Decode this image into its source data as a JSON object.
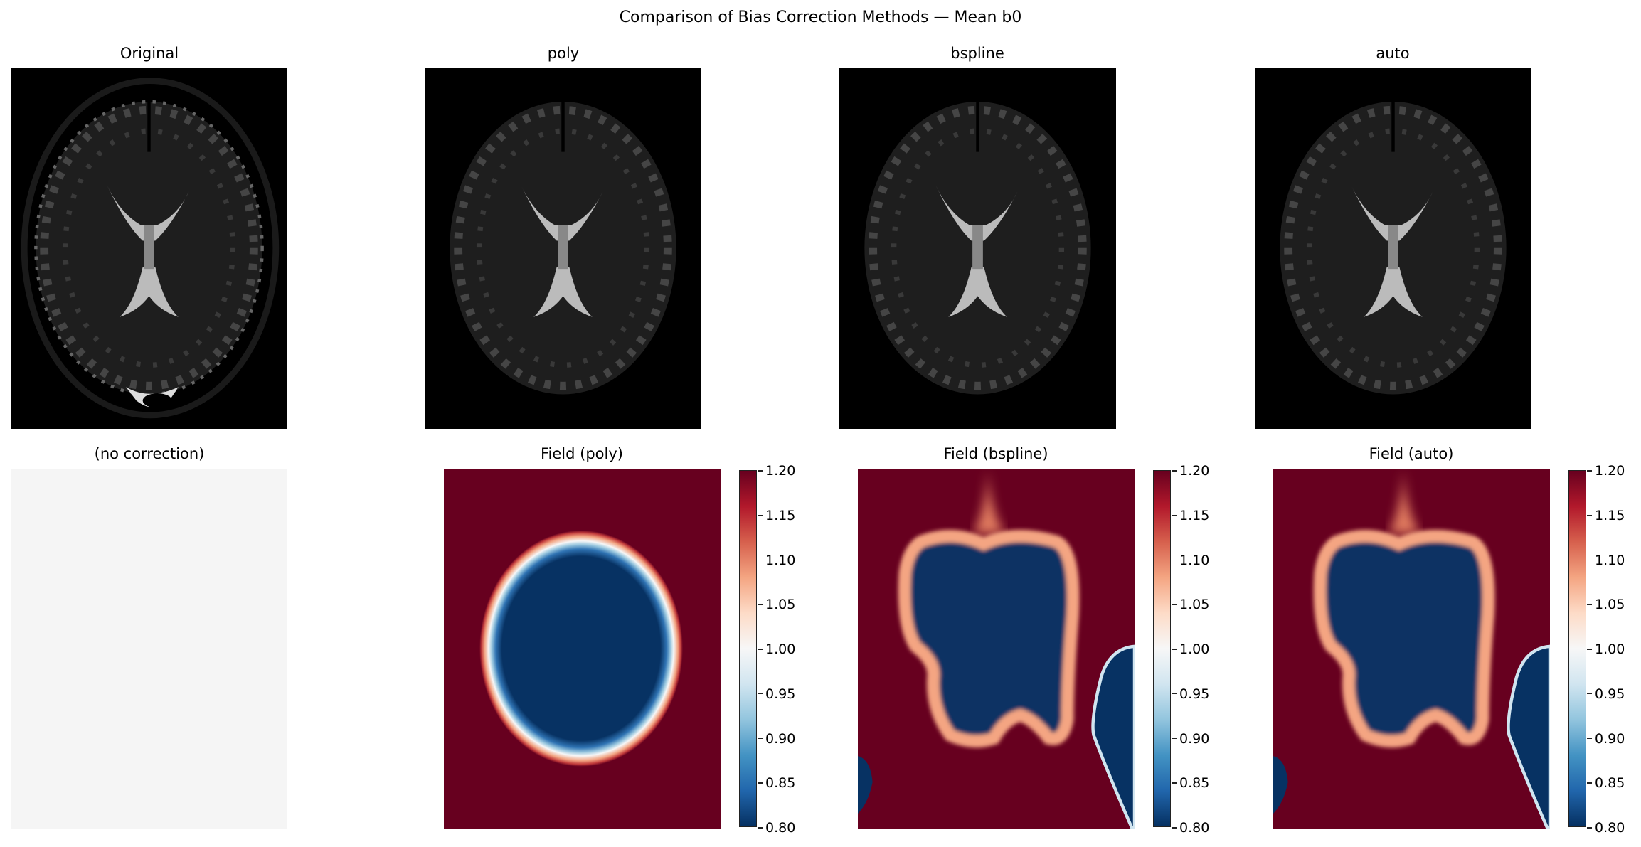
{
  "chart_data": {
    "type": "heatmap",
    "title": "Comparison of Bias Correction Methods — Mean b0",
    "panels": [
      {
        "title": "Original",
        "kind": "image",
        "cmap": "gray"
      },
      {
        "title": "poly",
        "kind": "image",
        "cmap": "gray"
      },
      {
        "title": "bspline",
        "kind": "image",
        "cmap": "gray"
      },
      {
        "title": "auto",
        "kind": "image",
        "cmap": "gray"
      },
      {
        "title": "(no correction)",
        "kind": "field",
        "value": 1.0
      },
      {
        "title": "Field (poly)",
        "kind": "field",
        "cmap": "RdBu_r",
        "colorbar": true
      },
      {
        "title": "Field (bspline)",
        "kind": "field",
        "cmap": "RdBu_r",
        "colorbar": true
      },
      {
        "title": "Field (auto)",
        "kind": "field",
        "cmap": "RdBu_r",
        "colorbar": true
      }
    ],
    "colorbar": {
      "vmin": 0.8,
      "vmax": 1.2,
      "ticks": [
        "0.80",
        "0.85",
        "0.90",
        "0.95",
        "1.00",
        "1.05",
        "1.10",
        "1.15",
        "1.20"
      ]
    },
    "colors": {
      "low": "#053061",
      "mid": "#f7f7f7",
      "high": "#67001f"
    }
  }
}
